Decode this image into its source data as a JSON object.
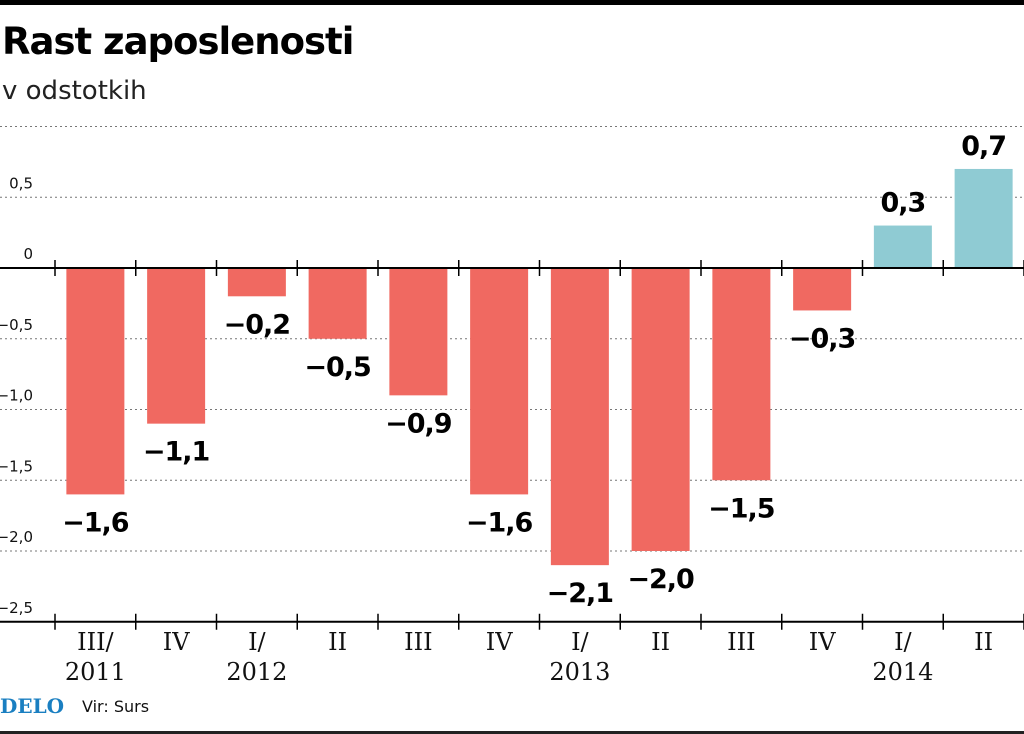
{
  "chart_data": {
    "type": "bar",
    "title": "Rast zaposlenosti",
    "subtitle": "v odstotkih",
    "categories": [
      [
        "III/",
        "2011"
      ],
      [
        "IV"
      ],
      [
        "I/",
        "2012"
      ],
      [
        "II"
      ],
      [
        "III"
      ],
      [
        "IV"
      ],
      [
        "I/",
        "2013"
      ],
      [
        "II"
      ],
      [
        "III"
      ],
      [
        "IV"
      ],
      [
        "I/",
        "2014"
      ],
      [
        "II"
      ]
    ],
    "values": [
      -1.6,
      -1.1,
      -0.2,
      -0.5,
      -0.9,
      -1.6,
      -2.1,
      -2.0,
      -1.5,
      -0.3,
      0.3,
      0.7
    ],
    "data_labels": [
      "−1,6",
      "−1,1",
      "−0,2",
      "−0,5",
      "−0,9",
      "−1,6",
      "−2,1",
      "−2,0",
      "−1,5",
      "−0,3",
      "0,3",
      "0,7"
    ],
    "yticks": [
      0.5,
      0,
      -0.5,
      -1.0,
      -1.5,
      -2.0,
      -2.5
    ],
    "ytick_labels": [
      "0,5",
      "0",
      "−0,5",
      "−1,0",
      "−1,5",
      "−2,0",
      "−2,5"
    ],
    "ylim": [
      -2.5,
      1.0
    ],
    "grid": true,
    "colors": {
      "negative": "#f06961",
      "positive": "#8fcbd3"
    }
  },
  "footer": {
    "logo": "DELO",
    "source": "Vir: Surs"
  }
}
